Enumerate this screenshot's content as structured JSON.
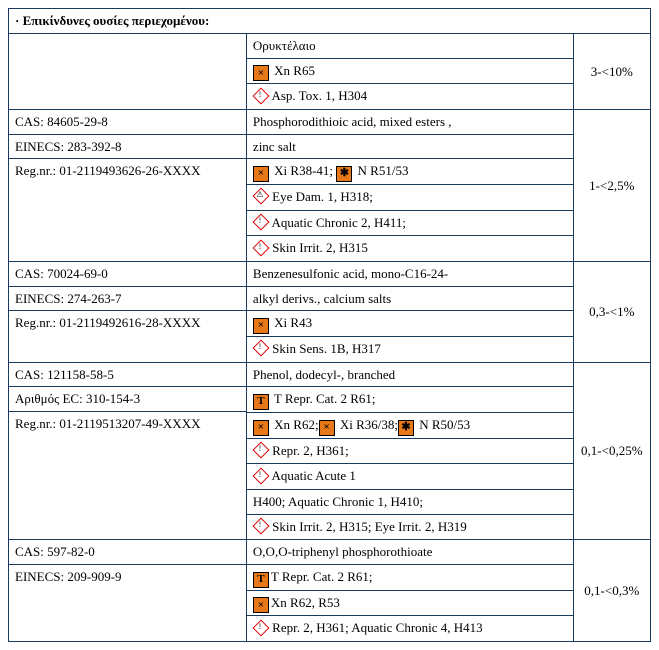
{
  "header": "· Επικίνδυνες ουσίες περιεχομένου:",
  "rows": [
    {
      "id_lines": [],
      "desc_lines": [
        {
          "text": "Ορυκτέλαιο"
        },
        {
          "icons": [
            {
              "t": "sq",
              "g": "×"
            }
          ],
          "text": " Xn R65"
        },
        {
          "icons": [
            {
              "t": "d",
              "g": "!"
            }
          ],
          "text": " Asp. Tox. 1, H304"
        }
      ],
      "pct": "3-<10%"
    },
    {
      "id_lines": [
        "CAS: 84605-29-8",
        "EINECS: 283-392-8",
        "Reg.nr.: 01-2119493626-26-XXXX"
      ],
      "desc_lines": [
        {
          "text": "Phosphorodithioic acid, mixed esters ,"
        },
        {
          "text": " zinc salt"
        },
        {
          "icons": [
            {
              "t": "sq",
              "g": "×"
            }
          ],
          "text": " Xi R38-41; ",
          "icons2": [
            {
              "t": "sq",
              "g": "✱"
            }
          ],
          "text2": " N R51/53"
        },
        {
          "icons": [
            {
              "t": "d",
              "g": "⚠"
            }
          ],
          "text": " Eye Dam. 1, H318;"
        },
        {
          "icons": [
            {
              "t": "d",
              "g": "!"
            }
          ],
          "text": " Aquatic Chronic 2, H411;"
        },
        {
          "icons": [
            {
              "t": "d",
              "g": "!"
            }
          ],
          "text": " Skin Irrit. 2, H315"
        }
      ],
      "pct": "1-<2,5%"
    },
    {
      "id_lines": [
        "CAS: 70024-69-0",
        "EINECS: 274-263-7",
        "Reg.nr.: 01-2119492616-28-XXXX"
      ],
      "desc_lines": [
        {
          "text": "Benzenesulfonic acid, mono-C16-24-"
        },
        {
          "text": "alkyl derivs., calcium salts"
        },
        {
          "icons": [
            {
              "t": "sq",
              "g": "×"
            }
          ],
          "text": " Xi R43"
        },
        {
          "icons": [
            {
              "t": "d",
              "g": "!"
            }
          ],
          "text": "  Skin Sens. 1B, H317"
        }
      ],
      "pct": "0,3-<1%"
    },
    {
      "id_lines": [
        "CAS: 121158-58-5",
        "Αριθμός EC: 310-154-3",
        "Reg.nr.: 01-2119513207-49-XXXX"
      ],
      "desc_lines": [
        {
          "text": "Phenol, dodecyl-, branched"
        },
        {
          "icons": [
            {
              "t": "sq",
              "g": "T"
            }
          ],
          "text": " T Repr. Cat. 2 R61;"
        },
        {
          "icons": [
            {
              "t": "sq",
              "g": "×"
            }
          ],
          "text": "  Xn R62;",
          "icons2": [
            {
              "t": "sq",
              "g": "×"
            }
          ],
          "text2": " Xi R36/38;",
          "icons3": [
            {
              "t": "sq",
              "g": "✱"
            }
          ],
          "text3": " N R50/53"
        },
        {
          "icons": [
            {
              "t": "d",
              "g": "!"
            }
          ],
          "text": " Repr. 2, H361;"
        },
        {
          "icons": [
            {
              "t": "d",
              "g": "!"
            }
          ],
          "text": "  Aquatic Acute 1"
        },
        {
          "text": "H400; Aquatic Chronic 1, H410;"
        },
        {
          "icons": [
            {
              "t": "d",
              "g": "!"
            }
          ],
          "text": " Skin Irrit. 2, H315; Eye Irrit. 2, H319"
        }
      ],
      "pct": "0,1-<0,25%"
    },
    {
      "id_lines": [
        "CAS: 597-82-0",
        "EINECS: 209-909-9"
      ],
      "desc_lines": [
        {
          "text": "O,O,O-triphenyl phosphorothioate"
        },
        {
          "icons": [
            {
              "t": "sq",
              "g": "T"
            }
          ],
          "text": "T Repr. Cat. 2 R61;"
        },
        {
          "icons": [
            {
              "t": "sq",
              "g": "×"
            }
          ],
          "text": "Xn R62, R53"
        },
        {
          "icons": [
            {
              "t": "d",
              "g": "!"
            }
          ],
          "text": " Repr. 2, H361; Aquatic Chronic 4, H413"
        }
      ],
      "pct": "0,1-<0,3%"
    }
  ]
}
